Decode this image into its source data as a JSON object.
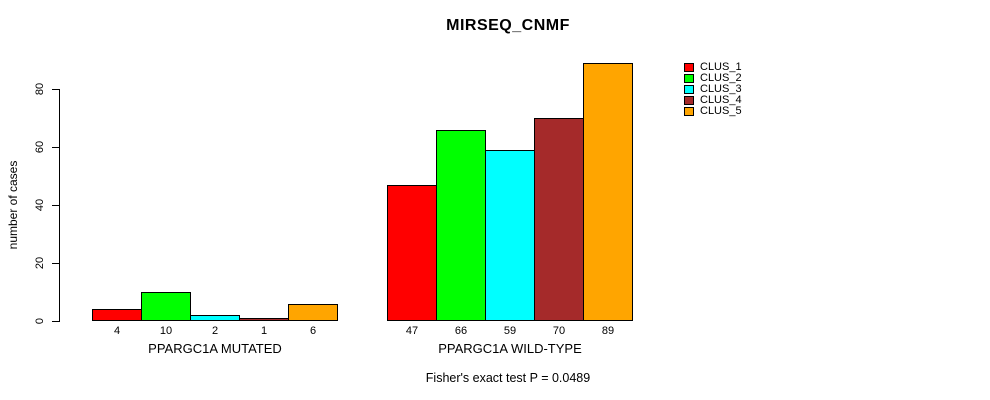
{
  "chart_data": {
    "type": "bar",
    "title": "MIRSEQ_CNMF",
    "ylabel": "number of cases",
    "xlabel": "",
    "categories": [
      "PPARGC1A MUTATED",
      "PPARGC1A WILD-TYPE"
    ],
    "series": [
      {
        "name": "CLUS_1",
        "color": "#FF0000",
        "values": [
          4,
          47
        ]
      },
      {
        "name": "CLUS_2",
        "color": "#00FF00",
        "values": [
          10,
          66
        ]
      },
      {
        "name": "CLUS_3",
        "color": "#00FFFF",
        "values": [
          2,
          59
        ]
      },
      {
        "name": "CLUS_4",
        "color": "#A52A2A",
        "values": [
          1,
          70
        ]
      },
      {
        "name": "CLUS_5",
        "color": "#FFA500",
        "values": [
          6,
          89
        ]
      }
    ],
    "yticks": [
      0,
      20,
      40,
      60,
      80
    ],
    "ylim": [
      0,
      89
    ],
    "grid": false,
    "legend_position": "top-right",
    "legend_entries": [
      "CLUS_1",
      "CLUS_2",
      "CLUS_3",
      "CLUS_4",
      "CLUS_5"
    ],
    "bar_value_labels_shown": true,
    "annotation": "Fisher's exact test P = 0.0489"
  }
}
